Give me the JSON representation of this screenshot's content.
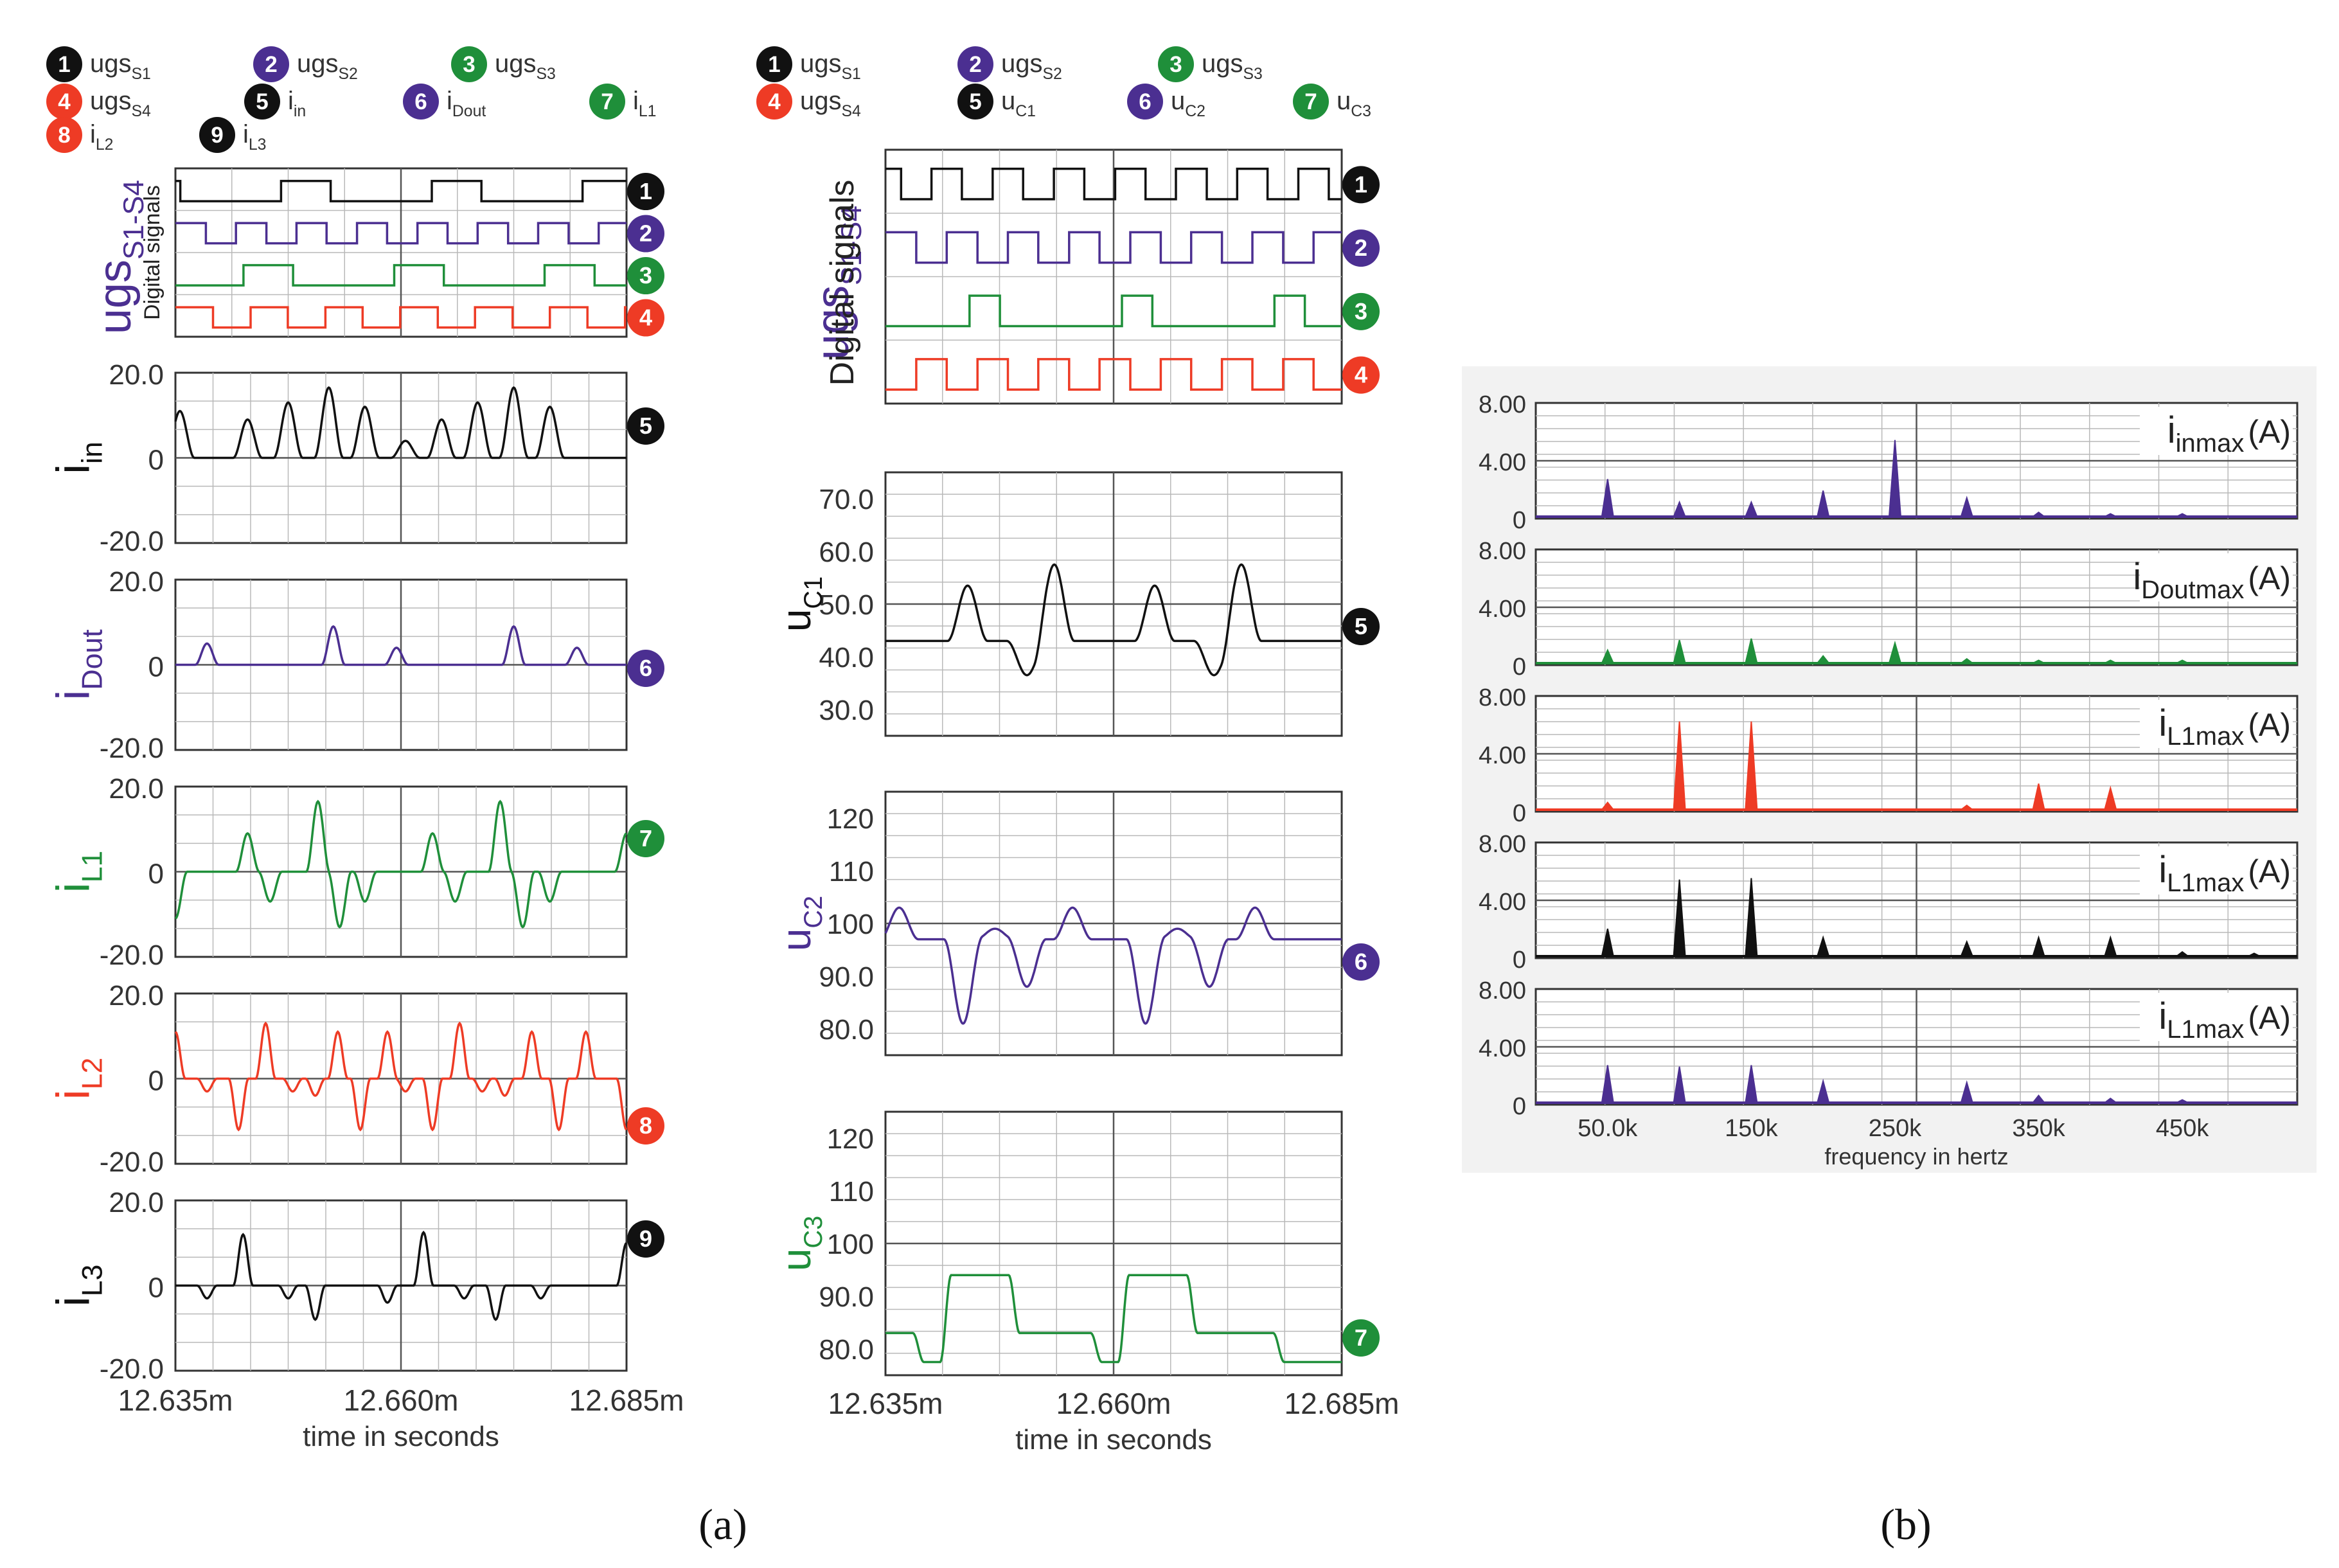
{
  "colors": {
    "black": "#111111",
    "purple": "#4b2f91",
    "green": "#1f8f3a",
    "red": "#ee3b25",
    "grid": "#b9b9b9",
    "axis": "#333333"
  },
  "captions": {
    "a": "(a)",
    "b": "(b)"
  },
  "panel_a1": {
    "legend": [
      {
        "num": "1",
        "base": "ugs",
        "sub": "S1",
        "color": "black"
      },
      {
        "num": "2",
        "base": "ugs",
        "sub": "S2",
        "color": "purple"
      },
      {
        "num": "3",
        "base": "ugs",
        "sub": "S3",
        "color": "green"
      },
      {
        "num": "4",
        "base": "ugs",
        "sub": "S4",
        "color": "red"
      },
      {
        "num": "5",
        "base": "i",
        "sub": "in",
        "color": "black"
      },
      {
        "num": "6",
        "base": "i",
        "sub": "Dout",
        "color": "purple"
      },
      {
        "num": "7",
        "base": "i",
        "sub": "L1",
        "color": "green"
      },
      {
        "num": "8",
        "base": "i",
        "sub": "L2",
        "color": "red"
      },
      {
        "num": "9",
        "base": "i",
        "sub": "L3",
        "color": "black"
      }
    ],
    "xaxis": {
      "ticks": [
        "12.635m",
        "12.660m",
        "12.685m"
      ],
      "label": "time in seconds"
    }
  },
  "panel_a2": {
    "legend": [
      {
        "num": "1",
        "base": "ugs",
        "sub": "S1",
        "color": "black"
      },
      {
        "num": "2",
        "base": "ugs",
        "sub": "S2",
        "color": "purple"
      },
      {
        "num": "3",
        "base": "ugs",
        "sub": "S3",
        "color": "green"
      },
      {
        "num": "4",
        "base": "ugs",
        "sub": "S4",
        "color": "red"
      },
      {
        "num": "5",
        "base": "u",
        "sub": "C1",
        "color": "black"
      },
      {
        "num": "6",
        "base": "u",
        "sub": "C2",
        "color": "purple"
      },
      {
        "num": "7",
        "base": "u",
        "sub": "C3",
        "color": "green"
      }
    ],
    "xaxis": {
      "ticks": [
        "12.635m",
        "12.660m",
        "12.685m"
      ],
      "label": "time in seconds"
    }
  },
  "chart_data": [
    {
      "id": "a1-digital",
      "type": "line",
      "title": "",
      "ylabel": "ugs S1-S4",
      "ylabel_inner": "Digital signals",
      "xlim": [
        12.635,
        12.685
      ],
      "series": [
        {
          "name": "ugs S1",
          "marker": "1",
          "color": "black",
          "wave": "square",
          "period": 0.0167,
          "duty": 0.33,
          "phase": 0.3
        },
        {
          "name": "ugs S2",
          "marker": "2",
          "color": "purple",
          "wave": "square",
          "period": 0.0067,
          "duty": 0.5,
          "phase": 0.0
        },
        {
          "name": "ugs S3",
          "marker": "3",
          "color": "green",
          "wave": "square",
          "period": 0.0167,
          "duty": 0.33,
          "phase": 0.55
        },
        {
          "name": "ugs S4",
          "marker": "4",
          "color": "red",
          "wave": "square",
          "period": 0.0083,
          "duty": 0.5,
          "phase": 0.0
        }
      ]
    },
    {
      "id": "a1-iin",
      "type": "line",
      "ylabel": "i",
      "ylabel_sub": "in",
      "ylim": [
        -20,
        20
      ],
      "yticks": [
        "20.0",
        "0",
        "-20.0"
      ],
      "marker": "5",
      "color": "black",
      "peaks": [
        [
          12.6355,
          11
        ],
        [
          12.643,
          9
        ],
        [
          12.6475,
          13
        ],
        [
          12.652,
          16.5
        ],
        [
          12.656,
          12
        ],
        [
          12.6605,
          4
        ],
        [
          12.6645,
          9
        ],
        [
          12.6685,
          13
        ],
        [
          12.6725,
          16.5
        ],
        [
          12.6765,
          12
        ]
      ],
      "width": 0.0016,
      "clip_negative": true
    },
    {
      "id": "a1-idout",
      "type": "line",
      "ylabel": "i",
      "ylabel_sub": "Dout",
      "ylim": [
        -20,
        20
      ],
      "yticks": [
        "20.0",
        "0",
        "-20.0"
      ],
      "marker": "6",
      "color": "purple",
      "peaks": [
        [
          12.6385,
          5
        ],
        [
          12.6525,
          9
        ],
        [
          12.6595,
          4
        ],
        [
          12.6725,
          9
        ],
        [
          12.6795,
          4
        ]
      ],
      "width": 0.0013
    },
    {
      "id": "a1-il1",
      "type": "line",
      "ylabel": "i",
      "ylabel_sub": "L1",
      "ylim": [
        -20,
        20
      ],
      "yticks": [
        "20.0",
        "0",
        "-20.0"
      ],
      "marker": "7",
      "color": "green",
      "peaks": [
        [
          12.635,
          -11
        ],
        [
          12.643,
          9
        ],
        [
          12.6455,
          -7
        ],
        [
          12.6508,
          16.5
        ],
        [
          12.6532,
          -13
        ],
        [
          12.656,
          -7
        ],
        [
          12.6635,
          9
        ],
        [
          12.666,
          -7
        ],
        [
          12.671,
          16.5
        ],
        [
          12.6735,
          -13
        ],
        [
          12.6765,
          -7
        ],
        [
          12.685,
          9
        ]
      ],
      "width": 0.0013
    },
    {
      "id": "a1-il2",
      "type": "line",
      "ylabel": "i",
      "ylabel_sub": "L2",
      "ylim": [
        -20,
        20
      ],
      "yticks": [
        "20.0",
        "0",
        "-20.0"
      ],
      "marker": "8",
      "color": "red",
      "peaks": [
        [
          12.635,
          11
        ],
        [
          12.6385,
          -3
        ],
        [
          12.642,
          -12
        ],
        [
          12.645,
          13
        ],
        [
          12.648,
          -3
        ],
        [
          12.6505,
          -4
        ],
        [
          12.653,
          11
        ],
        [
          12.6555,
          -12
        ],
        [
          12.6585,
          11
        ],
        [
          12.6605,
          -3
        ],
        [
          12.6635,
          -12
        ],
        [
          12.6665,
          13
        ],
        [
          12.669,
          -3
        ],
        [
          12.6715,
          -4
        ],
        [
          12.6745,
          11
        ],
        [
          12.6775,
          -12
        ],
        [
          12.6805,
          11
        ],
        [
          12.685,
          -12
        ]
      ],
      "width": 0.0011
    },
    {
      "id": "a1-il3",
      "type": "line",
      "ylabel": "i",
      "ylabel_sub": "L3",
      "ylim": [
        -20,
        20
      ],
      "yticks": [
        "20.0",
        "0",
        "-20.0"
      ],
      "marker": "9",
      "color": "black",
      "peaks": [
        [
          12.6385,
          -3
        ],
        [
          12.6425,
          12
        ],
        [
          12.6475,
          -3
        ],
        [
          12.6505,
          -8
        ],
        [
          12.6585,
          -4
        ],
        [
          12.6625,
          12.5
        ],
        [
          12.667,
          -3
        ],
        [
          12.6705,
          -8
        ],
        [
          12.6755,
          -3
        ],
        [
          12.685,
          10
        ]
      ],
      "width": 0.0011
    },
    {
      "id": "a2-digital",
      "type": "line",
      "ylabel": "ugs S1-S4",
      "ylabel_inner": "Digital signals",
      "xlim": [
        12.635,
        12.685
      ],
      "series": [
        {
          "name": "ugs S1",
          "marker": "1",
          "color": "black",
          "wave": "square",
          "period": 0.0067,
          "duty": 0.5,
          "phase": 0.25
        },
        {
          "name": "ugs S2",
          "marker": "2",
          "color": "purple",
          "wave": "square",
          "period": 0.0067,
          "duty": 0.5,
          "phase": 0.0
        },
        {
          "name": "ugs S3",
          "marker": "3",
          "color": "green",
          "wave": "square",
          "period": 0.0167,
          "duty": 0.2,
          "phase": 0.45
        },
        {
          "name": "ugs S4",
          "marker": "4",
          "color": "red",
          "wave": "square",
          "period": 0.0067,
          "duty": 0.5,
          "phase": 0.5
        }
      ]
    },
    {
      "id": "a2-uc1",
      "type": "line",
      "ylabel": "u",
      "ylabel_sub": "C1",
      "ylim": [
        25,
        75
      ],
      "yticks": [
        "70.0",
        "60.0",
        "50.0",
        "40.0",
        "30.0"
      ],
      "ytick_vals": [
        70,
        60,
        50,
        40,
        30
      ],
      "refline": 50,
      "marker": "5",
      "color": "black",
      "base": 43,
      "bumps": [
        [
          12.644,
          53.5
        ],
        [
          12.6505,
          36.5
        ],
        [
          12.6535,
          57.5
        ],
        [
          12.6645,
          53.5
        ],
        [
          12.671,
          36.5
        ],
        [
          12.674,
          57.5
        ]
      ],
      "width": 0.0022
    },
    {
      "id": "a2-uc2",
      "type": "line",
      "ylabel": "u",
      "ylabel_sub": "C2",
      "ylim": [
        75,
        125
      ],
      "yticks": [
        "120",
        "110",
        "100",
        "90.0",
        "80.0"
      ],
      "ytick_vals": [
        120,
        110,
        100,
        90,
        80
      ],
      "refline": 100,
      "marker": "6",
      "color": "purple",
      "base": 97,
      "bumps": [
        [
          12.6365,
          103
        ],
        [
          12.6435,
          81
        ],
        [
          12.647,
          99
        ],
        [
          12.6505,
          88
        ],
        [
          12.6555,
          103
        ],
        [
          12.6635,
          81
        ],
        [
          12.667,
          99
        ],
        [
          12.6705,
          88
        ],
        [
          12.6755,
          103
        ]
      ],
      "width": 0.0021
    },
    {
      "id": "a2-uc3",
      "type": "line",
      "ylabel": "u",
      "ylabel_sub": "C3",
      "ylim": [
        75,
        125
      ],
      "yticks": [
        "120",
        "110",
        "100",
        "90.0",
        "80.0"
      ],
      "ytick_vals": [
        120,
        110,
        100,
        90,
        80
      ],
      "refline": 100,
      "marker": "7",
      "color": "green",
      "levels": [
        [
          12.635,
          83
        ],
        [
          12.638,
          77.5
        ],
        [
          12.641,
          94
        ],
        [
          12.6485,
          83
        ],
        [
          12.6575,
          77.5
        ],
        [
          12.6605,
          94
        ],
        [
          12.668,
          83
        ],
        [
          12.6775,
          77.5
        ]
      ],
      "end": 12.685
    },
    {
      "id": "b-iin",
      "type": "bar",
      "title": "i inmax (A)",
      "base": "i",
      "sub": "inmax",
      "unit": "(A)",
      "color": "purple",
      "ylim": [
        0,
        8
      ],
      "yticks": [
        "8.00",
        "4.00",
        "0"
      ],
      "x": [
        50000,
        100000,
        150000,
        200000,
        250000,
        300000,
        350000,
        400000,
        450000
      ],
      "values": [
        2.6,
        1.0,
        1.0,
        1.8,
        5.3,
        1.3,
        0.3,
        0.2,
        0.2
      ]
    },
    {
      "id": "b-idout",
      "type": "bar",
      "title": "i Doutmax (A)",
      "base": "i",
      "sub": "Doutmax",
      "unit": "(A)",
      "color": "green",
      "ylim": [
        0,
        8
      ],
      "yticks": [
        "8.00",
        "4.00",
        "0"
      ],
      "x": [
        50000,
        100000,
        150000,
        200000,
        250000,
        300000,
        350000,
        400000,
        450000
      ],
      "values": [
        0.9,
        1.6,
        1.7,
        0.5,
        1.4,
        0.3,
        0.2,
        0.2,
        0.2
      ]
    },
    {
      "id": "b-il1a",
      "type": "bar",
      "title": "i L1max (A)",
      "base": "i",
      "sub": "L1max",
      "unit": "(A)",
      "color": "red",
      "ylim": [
        0,
        8
      ],
      "yticks": [
        "8.00",
        "4.00",
        "0"
      ],
      "x": [
        50000,
        100000,
        150000,
        300000,
        350000,
        400000
      ],
      "values": [
        0.5,
        6.1,
        6.1,
        0.3,
        1.8,
        1.5
      ]
    },
    {
      "id": "b-il1b",
      "type": "bar",
      "title": "i L1max (A)",
      "base": "i",
      "sub": "L1max",
      "unit": "(A)",
      "color": "black",
      "ylim": [
        0,
        8
      ],
      "yticks": [
        "8.00",
        "4.00",
        "0"
      ],
      "x": [
        50000,
        100000,
        150000,
        200000,
        300000,
        350000,
        400000,
        450000,
        500000
      ],
      "values": [
        1.9,
        5.3,
        5.4,
        1.3,
        1.0,
        1.3,
        1.3,
        0.3,
        0.2
      ]
    },
    {
      "id": "b-il1c",
      "type": "bar",
      "title": "i L1max (A)",
      "base": "i",
      "sub": "L1max",
      "unit": "(A)",
      "color": "purple",
      "ylim": [
        0,
        8
      ],
      "yticks": [
        "8.00",
        "4.00",
        "0"
      ],
      "x": [
        50000,
        100000,
        150000,
        200000,
        300000,
        350000,
        400000,
        450000
      ],
      "values": [
        2.6,
        2.5,
        2.6,
        1.5,
        1.4,
        0.5,
        0.3,
        0.2
      ],
      "xticks": [
        "50.0k",
        "150k",
        "250k",
        "350k",
        "450k"
      ],
      "xlabel": "frequency in hertz"
    }
  ]
}
